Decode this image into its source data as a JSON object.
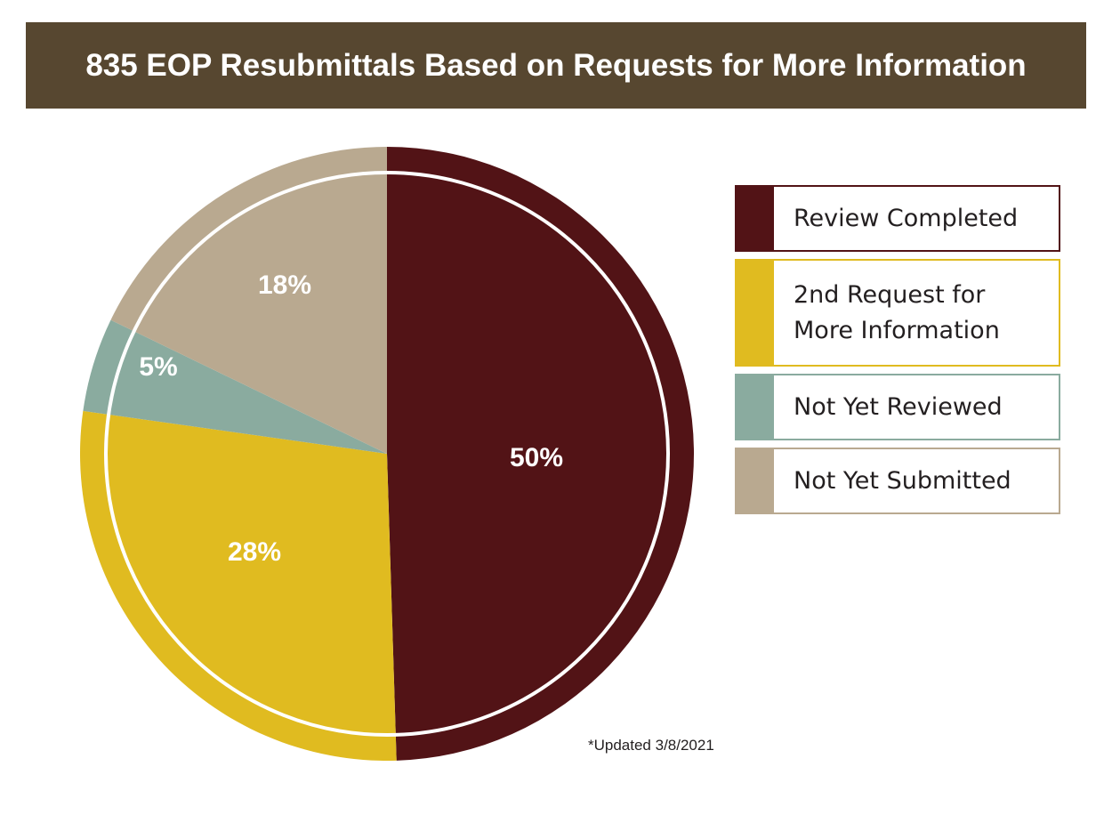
{
  "header": {
    "title": "835 EOP Resubmittals Based on Requests for More Information"
  },
  "chart_data": {
    "type": "pie",
    "title": "835 EOP Resubmittals Based on Requests for More Information",
    "slices": [
      {
        "name": "Review Completed",
        "value": 50,
        "label": "50%",
        "color": "#521316"
      },
      {
        "name": "2nd Request for More Information",
        "value": 28,
        "label": "28%",
        "color": "#e0bb20"
      },
      {
        "name": "Not Yet Reviewed",
        "value": 5,
        "label": "5%",
        "color": "#8aab9f"
      },
      {
        "name": "Not Yet Submitted",
        "value": 18,
        "label": "18%",
        "color": "#b9a990"
      }
    ],
    "legend_position": "right"
  },
  "legend": {
    "items": [
      {
        "label": "Review Completed",
        "color": "#521316"
      },
      {
        "label": "2nd Request for More Information",
        "color": "#e0bb20"
      },
      {
        "label": "Not Yet Reviewed",
        "color": "#8aab9f"
      },
      {
        "label": "Not Yet Submitted",
        "color": "#b9a990"
      }
    ]
  },
  "footnote": "*Updated 3/8/2021"
}
